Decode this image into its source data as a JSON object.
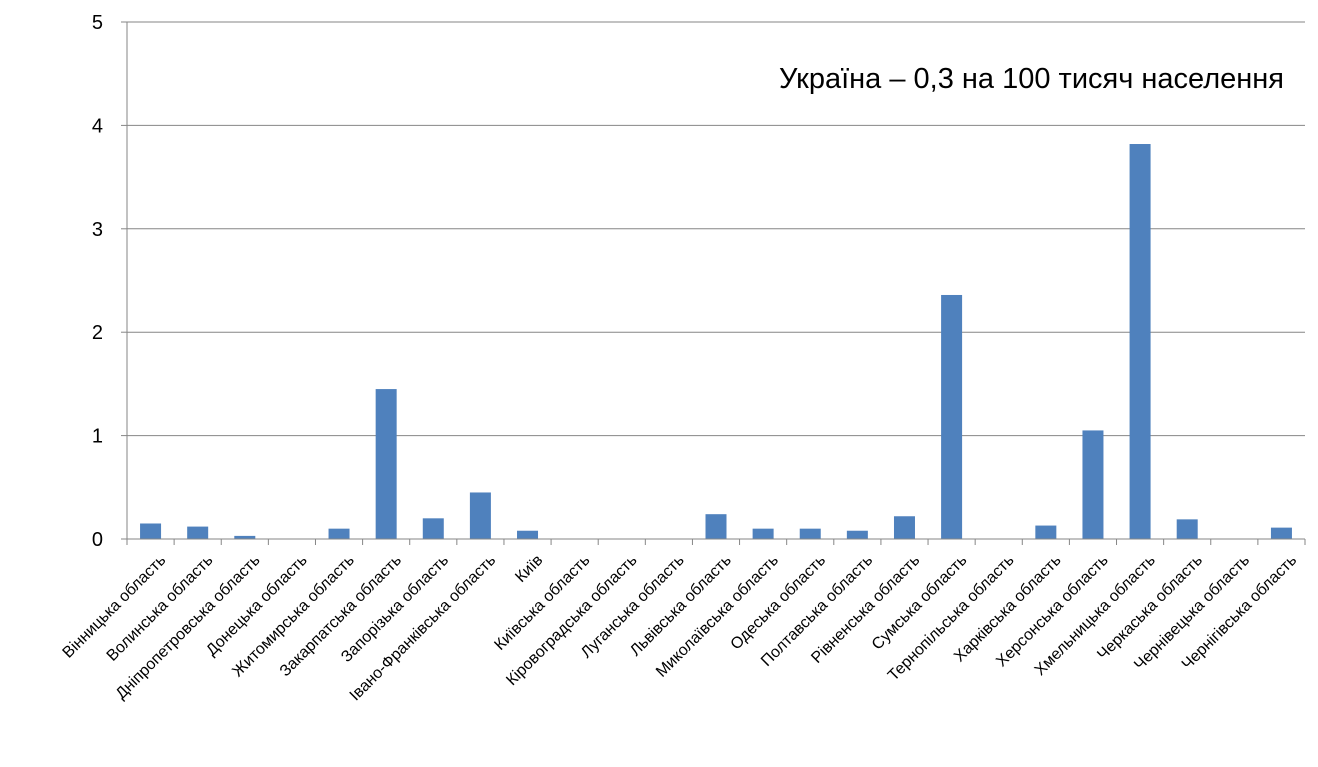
{
  "chart_data": {
    "type": "bar",
    "title": "",
    "xlabel": "",
    "ylabel": "",
    "ylim": [
      0,
      5
    ],
    "yticks": [
      0,
      1,
      2,
      3,
      4,
      5
    ],
    "grid": true,
    "legend": "none",
    "annotation": "Україна – 0,3 на 100 тисяч населення",
    "bar_color": "#4F81BD",
    "grid_color": "#868686",
    "categories": [
      "Вінницька область",
      "Волинська область",
      "Дніпропетровська область",
      "Донецька область",
      "Житомирська область",
      "Закарпатська область",
      "Запорізька область",
      "Івано-Франківська область",
      "Київ",
      "Київська область",
      "Кіровоградська область",
      "Луганська область",
      "Львівська область",
      "Миколаївська область",
      "Одеська область",
      "Полтавська область",
      "Рівненська область",
      "Сумська область",
      "Тернопільська область",
      "Харківська область",
      "Херсонська область",
      "Хмельницька область",
      "Черкаська область",
      "Чернівецька область",
      "Чернігівська область"
    ],
    "values": [
      0.15,
      0.12,
      0.03,
      0,
      0.1,
      1.45,
      0.2,
      0.45,
      0.08,
      0,
      0,
      0,
      0.24,
      0.1,
      0.1,
      0.08,
      0.22,
      2.36,
      0,
      0.13,
      1.05,
      3.82,
      0.19,
      0,
      0.11
    ]
  }
}
